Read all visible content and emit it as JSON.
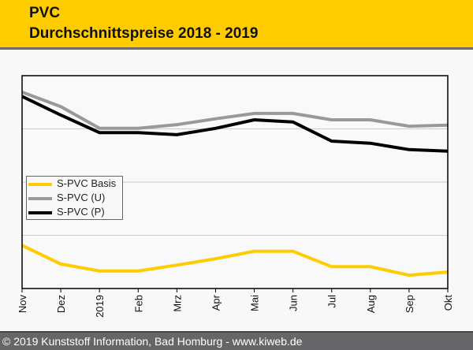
{
  "header": {
    "title": "PVC",
    "subtitle": "Durchschnittspreise 2018 - 2019"
  },
  "footer": {
    "text": "© 2019 Kunststoff Information, Bad Homburg - www.kiweb.de"
  },
  "colors": {
    "header_bg": "#ffcc00",
    "basis": "#ffcc00",
    "u": "#999999",
    "p": "#000000",
    "gridline": "#cccccc"
  },
  "chart_data": {
    "type": "line",
    "title": "PVC Durchschnittspreise 2018 - 2019",
    "xlabel": "",
    "ylabel": "",
    "y_unit_note": "no y-axis labels shown; values in relative gridline units",
    "ylim": [
      0,
      4
    ],
    "y_gridlines": [
      1,
      2,
      3
    ],
    "grid": true,
    "legend_position": "center-left",
    "categories": [
      "Nov",
      "Dez",
      "2019",
      "Feb",
      "Mrz",
      "Apr",
      "Mai",
      "Jun",
      "Jul",
      "Aug",
      "Sep",
      "Okt"
    ],
    "series": [
      {
        "name": "S-PVC Basis",
        "color": "#ffcc00",
        "values": [
          0.81,
          0.46,
          0.33,
          0.33,
          0.44,
          0.56,
          0.7,
          0.7,
          0.41,
          0.41,
          0.25,
          0.31
        ]
      },
      {
        "name": "S-PVC (U)",
        "color": "#999999",
        "values": [
          3.69,
          3.42,
          3.01,
          3.01,
          3.08,
          3.19,
          3.29,
          3.29,
          3.17,
          3.17,
          3.05,
          3.07
        ]
      },
      {
        "name": "S-PVC (P)",
        "color": "#000000",
        "values": [
          3.61,
          3.26,
          2.93,
          2.93,
          2.89,
          3.01,
          3.17,
          3.13,
          2.77,
          2.73,
          2.61,
          2.58
        ]
      }
    ]
  }
}
